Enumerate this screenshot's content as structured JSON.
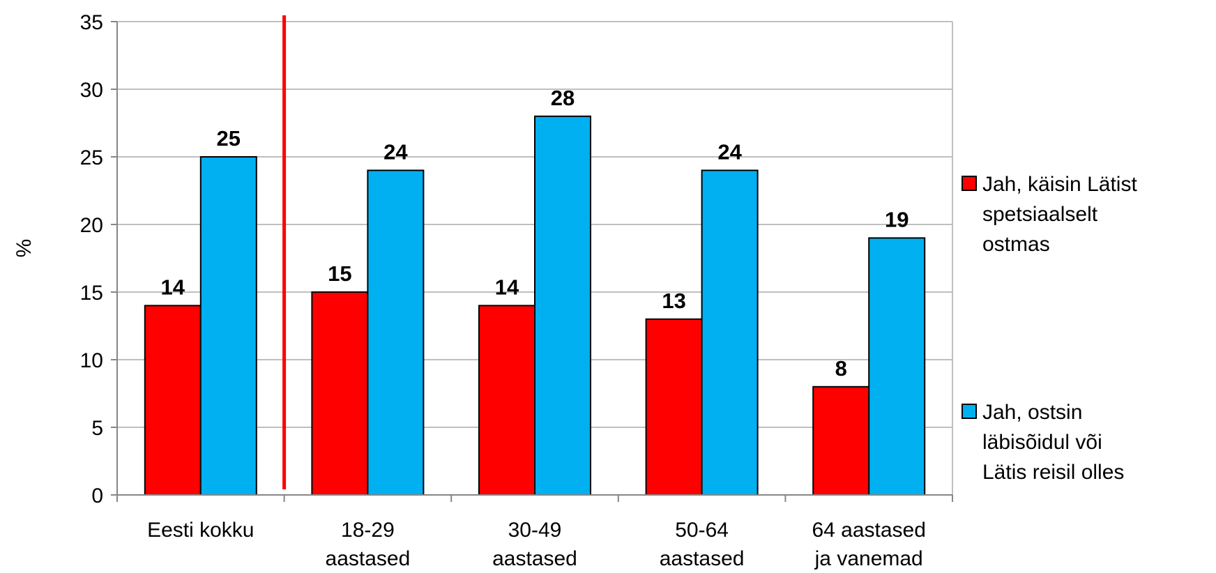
{
  "chart_data": {
    "type": "bar",
    "title": "",
    "xlabel": "",
    "ylabel": "%",
    "ylim": [
      0,
      35
    ],
    "yticks": [
      0,
      5,
      10,
      15,
      20,
      25,
      30,
      35
    ],
    "grid": true,
    "legend_position": "right",
    "categories": [
      [
        "Eesti kokku"
      ],
      [
        "18-29",
        "aastased"
      ],
      [
        "30-49",
        "aastased"
      ],
      [
        "50-64",
        "aastased"
      ],
      [
        "64 aastased",
        "ja vanemad"
      ]
    ],
    "series": [
      {
        "name": "Jah, käisin Lätist spetsiaalselt ostmas",
        "legend_lines": [
          "Jah, käisin Lätist",
          "spetsiaalselt",
          "ostmas"
        ],
        "color": "#FF0000",
        "values": [
          14,
          15,
          14,
          13,
          8
        ]
      },
      {
        "name": "Jah, ostsin läbisõidul või Lätis reisil olles",
        "legend_lines": [
          "Jah, ostsin",
          "läbisõidul või",
          "Lätis reisil olles"
        ],
        "color": "#00B0F0",
        "values": [
          25,
          24,
          28,
          24,
          19
        ]
      }
    ],
    "separator_after_category": 0,
    "separator_color": "#FF0000",
    "gridline_color": "#BFBFBF"
  }
}
